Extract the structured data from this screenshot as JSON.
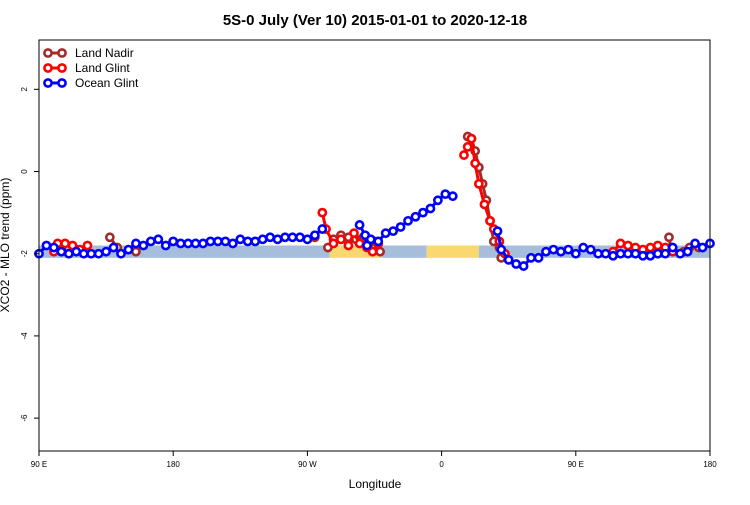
{
  "chart_data": {
    "type": "line",
    "title": "5S-0 July (Ver 10)   2015-01-01 to 2020-12-18",
    "xlabel": "Longitude",
    "ylabel": "XCO2 - MLO trend (ppm)",
    "xlim": [
      90,
      270
    ],
    "ylim": [
      -6.8,
      3.2
    ],
    "x_ticks": [
      {
        "value": 90,
        "label": "90 E"
      },
      {
        "value": 126,
        "label": "180"
      },
      {
        "value": 162,
        "label": "90 W"
      },
      {
        "value": 198,
        "label": "0"
      },
      {
        "value": 234,
        "label": "90 E"
      },
      {
        "value": 270,
        "label": "180"
      }
    ],
    "y_ticks": [
      {
        "value": 2,
        "label": "2"
      },
      {
        "value": 0,
        "label": "0"
      },
      {
        "value": -2,
        "label": "-2"
      },
      {
        "value": -4,
        "label": "-4"
      },
      {
        "value": -6,
        "label": "-6"
      }
    ],
    "legend_position": "top-left",
    "background_band": {
      "y_range": [
        -2.1,
        -1.8
      ],
      "segments": [
        {
          "x_range": [
            90,
            168
          ],
          "color": "#a6bddb"
        },
        {
          "x_range": [
            168,
            182
          ],
          "color": "#f9d86f"
        },
        {
          "x_range": [
            182,
            194
          ],
          "color": "#a6bddb"
        },
        {
          "x_range": [
            194,
            208
          ],
          "color": "#f9d86f"
        },
        {
          "x_range": [
            208,
            270
          ],
          "color": "#a6bddb"
        }
      ]
    },
    "series": [
      {
        "name": "Land Nadir",
        "color": "#a52a2a",
        "segments": [
          [
            [
              94,
              -1.85
            ],
            [
              96,
              -1.9
            ],
            [
              98,
              -2.0
            ],
            [
              100,
              -1.9
            ]
          ],
          [
            [
              109,
              -1.6
            ],
            [
              111,
              -1.85
            ]
          ],
          [
            [
              116,
              -1.95
            ]
          ],
          [
            [
              164,
              -1.6
            ]
          ],
          [
            [
              167.5,
              -1.85
            ],
            [
              169,
              -1.65
            ],
            [
              171,
              -1.55
            ],
            [
              173,
              -1.6
            ],
            [
              175,
              -1.65
            ],
            [
              177,
              -1.6
            ],
            [
              178.5,
              -1.75
            ],
            [
              180,
              -1.7
            ],
            [
              181.5,
              -1.95
            ]
          ],
          [
            [
              205,
              0.85
            ],
            [
              206,
              0.8
            ],
            [
              207,
              0.5
            ],
            [
              208,
              0.1
            ],
            [
              209,
              -0.3
            ],
            [
              210,
              -0.7
            ],
            [
              211,
              -1.2
            ],
            [
              212,
              -1.7
            ],
            [
              213.5,
              -1.85
            ],
            [
              214,
              -2.1
            ]
          ],
          [
            [
              252,
              -1.9
            ],
            [
              254,
              -1.95
            ],
            [
              256,
              -2.0
            ]
          ],
          [
            [
              267,
              -1.85
            ]
          ],
          [
            [
              259,
              -1.6
            ],
            [
              259.5,
              -1.85
            ]
          ],
          [
            [
              263,
              -1.95
            ],
            [
              264.5,
              -1.85
            ]
          ]
        ]
      },
      {
        "name": "Land Glint",
        "color": "#ff0000",
        "segments": [
          [
            [
              94,
              -1.95
            ],
            [
              95,
              -1.75
            ],
            [
              97,
              -1.75
            ],
            [
              99,
              -1.8
            ],
            [
              101,
              -1.9
            ],
            [
              103,
              -1.8
            ]
          ],
          [
            [
              166,
              -1.0
            ],
            [
              167,
              -1.4
            ],
            [
              169,
              -1.75
            ],
            [
              171,
              -1.65
            ],
            [
              173,
              -1.8
            ],
            [
              174.5,
              -1.5
            ],
            [
              176,
              -1.75
            ],
            [
              178,
              -1.85
            ],
            [
              179.5,
              -1.95
            ],
            [
              181,
              -1.75
            ]
          ],
          [
            [
              204,
              0.4
            ],
            [
              205,
              0.6
            ],
            [
              206,
              0.8
            ],
            [
              207,
              0.2
            ],
            [
              208,
              -0.3
            ],
            [
              209.5,
              -0.8
            ],
            [
              211,
              -1.2
            ],
            [
              212,
              -1.4
            ],
            [
              213.5,
              -1.7
            ],
            [
              215,
              -2.0
            ]
          ],
          [
            [
              244,
              -1.95
            ],
            [
              246,
              -1.75
            ],
            [
              248,
              -1.8
            ],
            [
              250,
              -1.85
            ],
            [
              252,
              -1.9
            ],
            [
              254,
              -1.85
            ],
            [
              256,
              -1.8
            ]
          ],
          [
            [
              258,
              -1.85
            ],
            [
              260,
              -1.95
            ]
          ]
        ]
      },
      {
        "name": "Ocean Glint",
        "color": "#0000ff",
        "segments": [
          [
            [
              90,
              -2.0
            ],
            [
              92,
              -1.8
            ],
            [
              94,
              -1.85
            ],
            [
              96,
              -1.95
            ],
            [
              98,
              -2.0
            ],
            [
              100,
              -1.95
            ],
            [
              102,
              -2.0
            ],
            [
              104,
              -2.0
            ],
            [
              106,
              -2.0
            ],
            [
              108,
              -1.95
            ],
            [
              110,
              -1.85
            ],
            [
              112,
              -2.0
            ],
            [
              114,
              -1.9
            ],
            [
              116,
              -1.75
            ],
            [
              118,
              -1.8
            ],
            [
              120,
              -1.7
            ],
            [
              122,
              -1.65
            ],
            [
              124,
              -1.8
            ],
            [
              126,
              -1.7
            ],
            [
              128,
              -1.75
            ],
            [
              130,
              -1.75
            ],
            [
              132,
              -1.75
            ],
            [
              134,
              -1.75
            ],
            [
              136,
              -1.7
            ],
            [
              138,
              -1.7
            ],
            [
              140,
              -1.7
            ],
            [
              142,
              -1.75
            ],
            [
              144,
              -1.65
            ],
            [
              146,
              -1.7
            ],
            [
              148,
              -1.7
            ],
            [
              150,
              -1.65
            ],
            [
              152,
              -1.6
            ],
            [
              154,
              -1.65
            ],
            [
              156,
              -1.6
            ],
            [
              158,
              -1.6
            ],
            [
              160,
              -1.6
            ],
            [
              162,
              -1.65
            ],
            [
              164,
              -1.55
            ],
            [
              166,
              -1.4
            ]
          ],
          [
            [
              176,
              -1.3
            ],
            [
              177.5,
              -1.55
            ],
            [
              178,
              -1.8
            ],
            [
              179,
              -1.65
            ],
            [
              181,
              -1.7
            ],
            [
              183,
              -1.5
            ],
            [
              185,
              -1.45
            ],
            [
              187,
              -1.35
            ],
            [
              189,
              -1.2
            ],
            [
              191,
              -1.1
            ],
            [
              193,
              -1.0
            ],
            [
              195,
              -0.9
            ],
            [
              197,
              -0.7
            ],
            [
              199,
              -0.55
            ],
            [
              201,
              -0.6
            ]
          ],
          [
            [
              213,
              -1.45
            ],
            [
              214,
              -1.9
            ],
            [
              216,
              -2.15
            ],
            [
              218,
              -2.25
            ],
            [
              220,
              -2.3
            ],
            [
              222,
              -2.1
            ],
            [
              224,
              -2.1
            ],
            [
              226,
              -1.95
            ],
            [
              228,
              -1.9
            ],
            [
              230,
              -1.95
            ],
            [
              232,
              -1.9
            ],
            [
              234,
              -2.0
            ],
            [
              236,
              -1.85
            ],
            [
              238,
              -1.9
            ],
            [
              240,
              -2.0
            ],
            [
              242,
              -2.0
            ],
            [
              244,
              -2.05
            ],
            [
              246,
              -2.0
            ],
            [
              248,
              -2.0
            ],
            [
              250,
              -2.0
            ],
            [
              252,
              -2.05
            ],
            [
              254,
              -2.05
            ],
            [
              256,
              -2.0
            ],
            [
              258,
              -2.0
            ],
            [
              260,
              -1.85
            ],
            [
              262,
              -2.0
            ],
            [
              264,
              -1.95
            ],
            [
              266,
              -1.75
            ],
            [
              268,
              -1.85
            ],
            [
              270,
              -1.75
            ],
            [
              272,
              -1.75
            ],
            [
              274,
              -1.7
            ],
            [
              276,
              -1.85
            ],
            [
              278,
              -1.75
            ]
          ]
        ]
      }
    ]
  }
}
